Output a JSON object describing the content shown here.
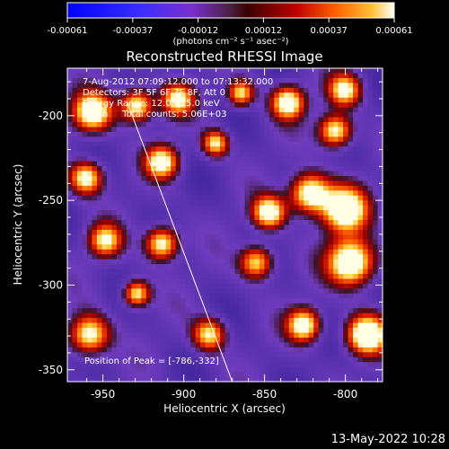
{
  "colorbar": {
    "ticks": [
      "-0.00061",
      "-0.00037",
      "-0.00012",
      "0.00012",
      "0.00037",
      "0.00061"
    ],
    "units": "(photons cm⁻² s⁻¹ asec⁻²)"
  },
  "plot": {
    "title": "Reconstructed RHESSI Image",
    "xlabel": "Heliocentric X (arcsec)",
    "ylabel": "Heliocentric Y (arcsec)",
    "xticks": [
      "-950",
      "-900",
      "-850",
      "-800"
    ],
    "yticks": [
      "-200",
      "-250",
      "-300",
      "-350"
    ],
    "xlim": [
      -972,
      -777
    ],
    "ylim": [
      -357,
      -172
    ]
  },
  "info_lines": {
    "time": "7-Aug-2012 07:09:12.000 to 07:13:32.000",
    "detectors": "Detectors: 3F 5F 6F 7F 8F, Att 0",
    "energy": "Energy Range: 12.0 - 25.0 keV",
    "clean": "Clean     Total counts: 5.06E+03"
  },
  "peak_text": "Position of Peak = [-786,-332]",
  "footer_date": "13-May-2022 10:28",
  "limb_line": {
    "x1": -935,
    "y1": -192,
    "x2": -870,
    "y2": -357
  }
}
